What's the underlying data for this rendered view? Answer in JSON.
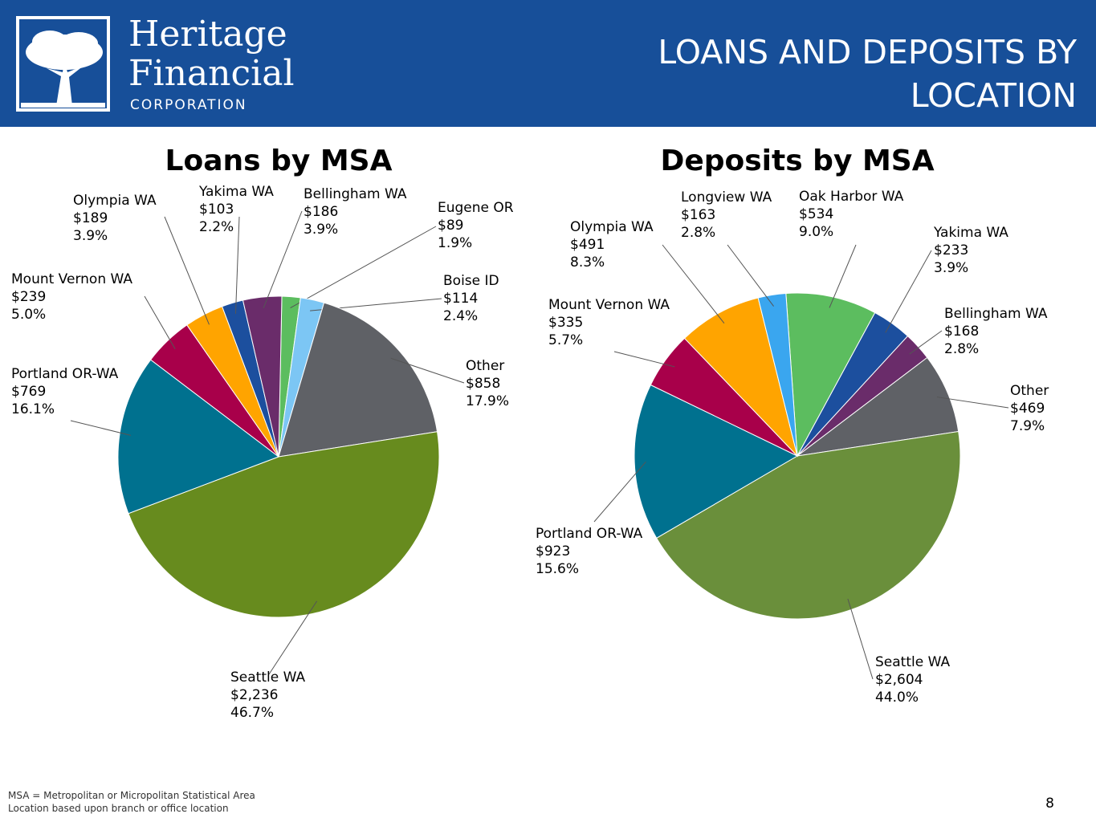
{
  "header": {
    "logo_lines": [
      "Heritage",
      "Financial",
      "CORPORATION"
    ],
    "title": "LOANS AND DEPOSITS BY LOCATION"
  },
  "chart_data": [
    {
      "type": "pie",
      "title": "Loans by MSA",
      "categories": [
        "Eugene OR",
        "Boise ID",
        "Other",
        "Seattle WA",
        "Portland OR-WA",
        "Mount Vernon WA",
        "Olympia WA",
        "Yakima WA",
        "Bellingham WA"
      ],
      "values": [
        89,
        114,
        858,
        2236,
        769,
        239,
        189,
        103,
        186
      ],
      "value_labels": [
        "$89",
        "$114",
        "$858",
        "$2,236",
        "$769",
        "$239",
        "$189",
        "$103",
        "$186"
      ],
      "percent_labels": [
        "1.9%",
        "2.4%",
        "17.9%",
        "46.7%",
        "16.1%",
        "5.0%",
        "3.9%",
        "2.2%",
        "3.9%"
      ],
      "colors": [
        "#5cbd5f",
        "#7cc6f4",
        "#5f6166",
        "#678b1e",
        "#00718f",
        "#a8004a",
        "#ffa400",
        "#1c4f9e",
        "#6a2c6a"
      ]
    },
    {
      "type": "pie",
      "title": "Deposits by MSA",
      "categories": [
        "Oak Harbor WA",
        "Yakima WA",
        "Bellingham WA",
        "Other",
        "Seattle WA",
        "Portland OR-WA",
        "Mount Vernon WA",
        "Olympia WA",
        "Longview WA"
      ],
      "values": [
        534,
        233,
        168,
        469,
        2604,
        923,
        335,
        491,
        163
      ],
      "value_labels": [
        "$534",
        "$233",
        "$168",
        "$469",
        "$2,604",
        "$923",
        "$335",
        "$491",
        "$163"
      ],
      "percent_labels": [
        "9.0%",
        "3.9%",
        "2.8%",
        "7.9%",
        "44.0%",
        "15.6%",
        "5.7%",
        "8.3%",
        "2.8%"
      ],
      "colors": [
        "#5cbd5f",
        "#1c4f9e",
        "#6a2c6a",
        "#5f6166",
        "#6a8f3b",
        "#00718f",
        "#a8004a",
        "#ffa400",
        "#3aa6ef"
      ]
    }
  ],
  "footer": {
    "notes": [
      "MSA = Metropolitan or Micropolitan Statistical Area",
      "Location based upon branch or office location"
    ],
    "page": "8"
  }
}
